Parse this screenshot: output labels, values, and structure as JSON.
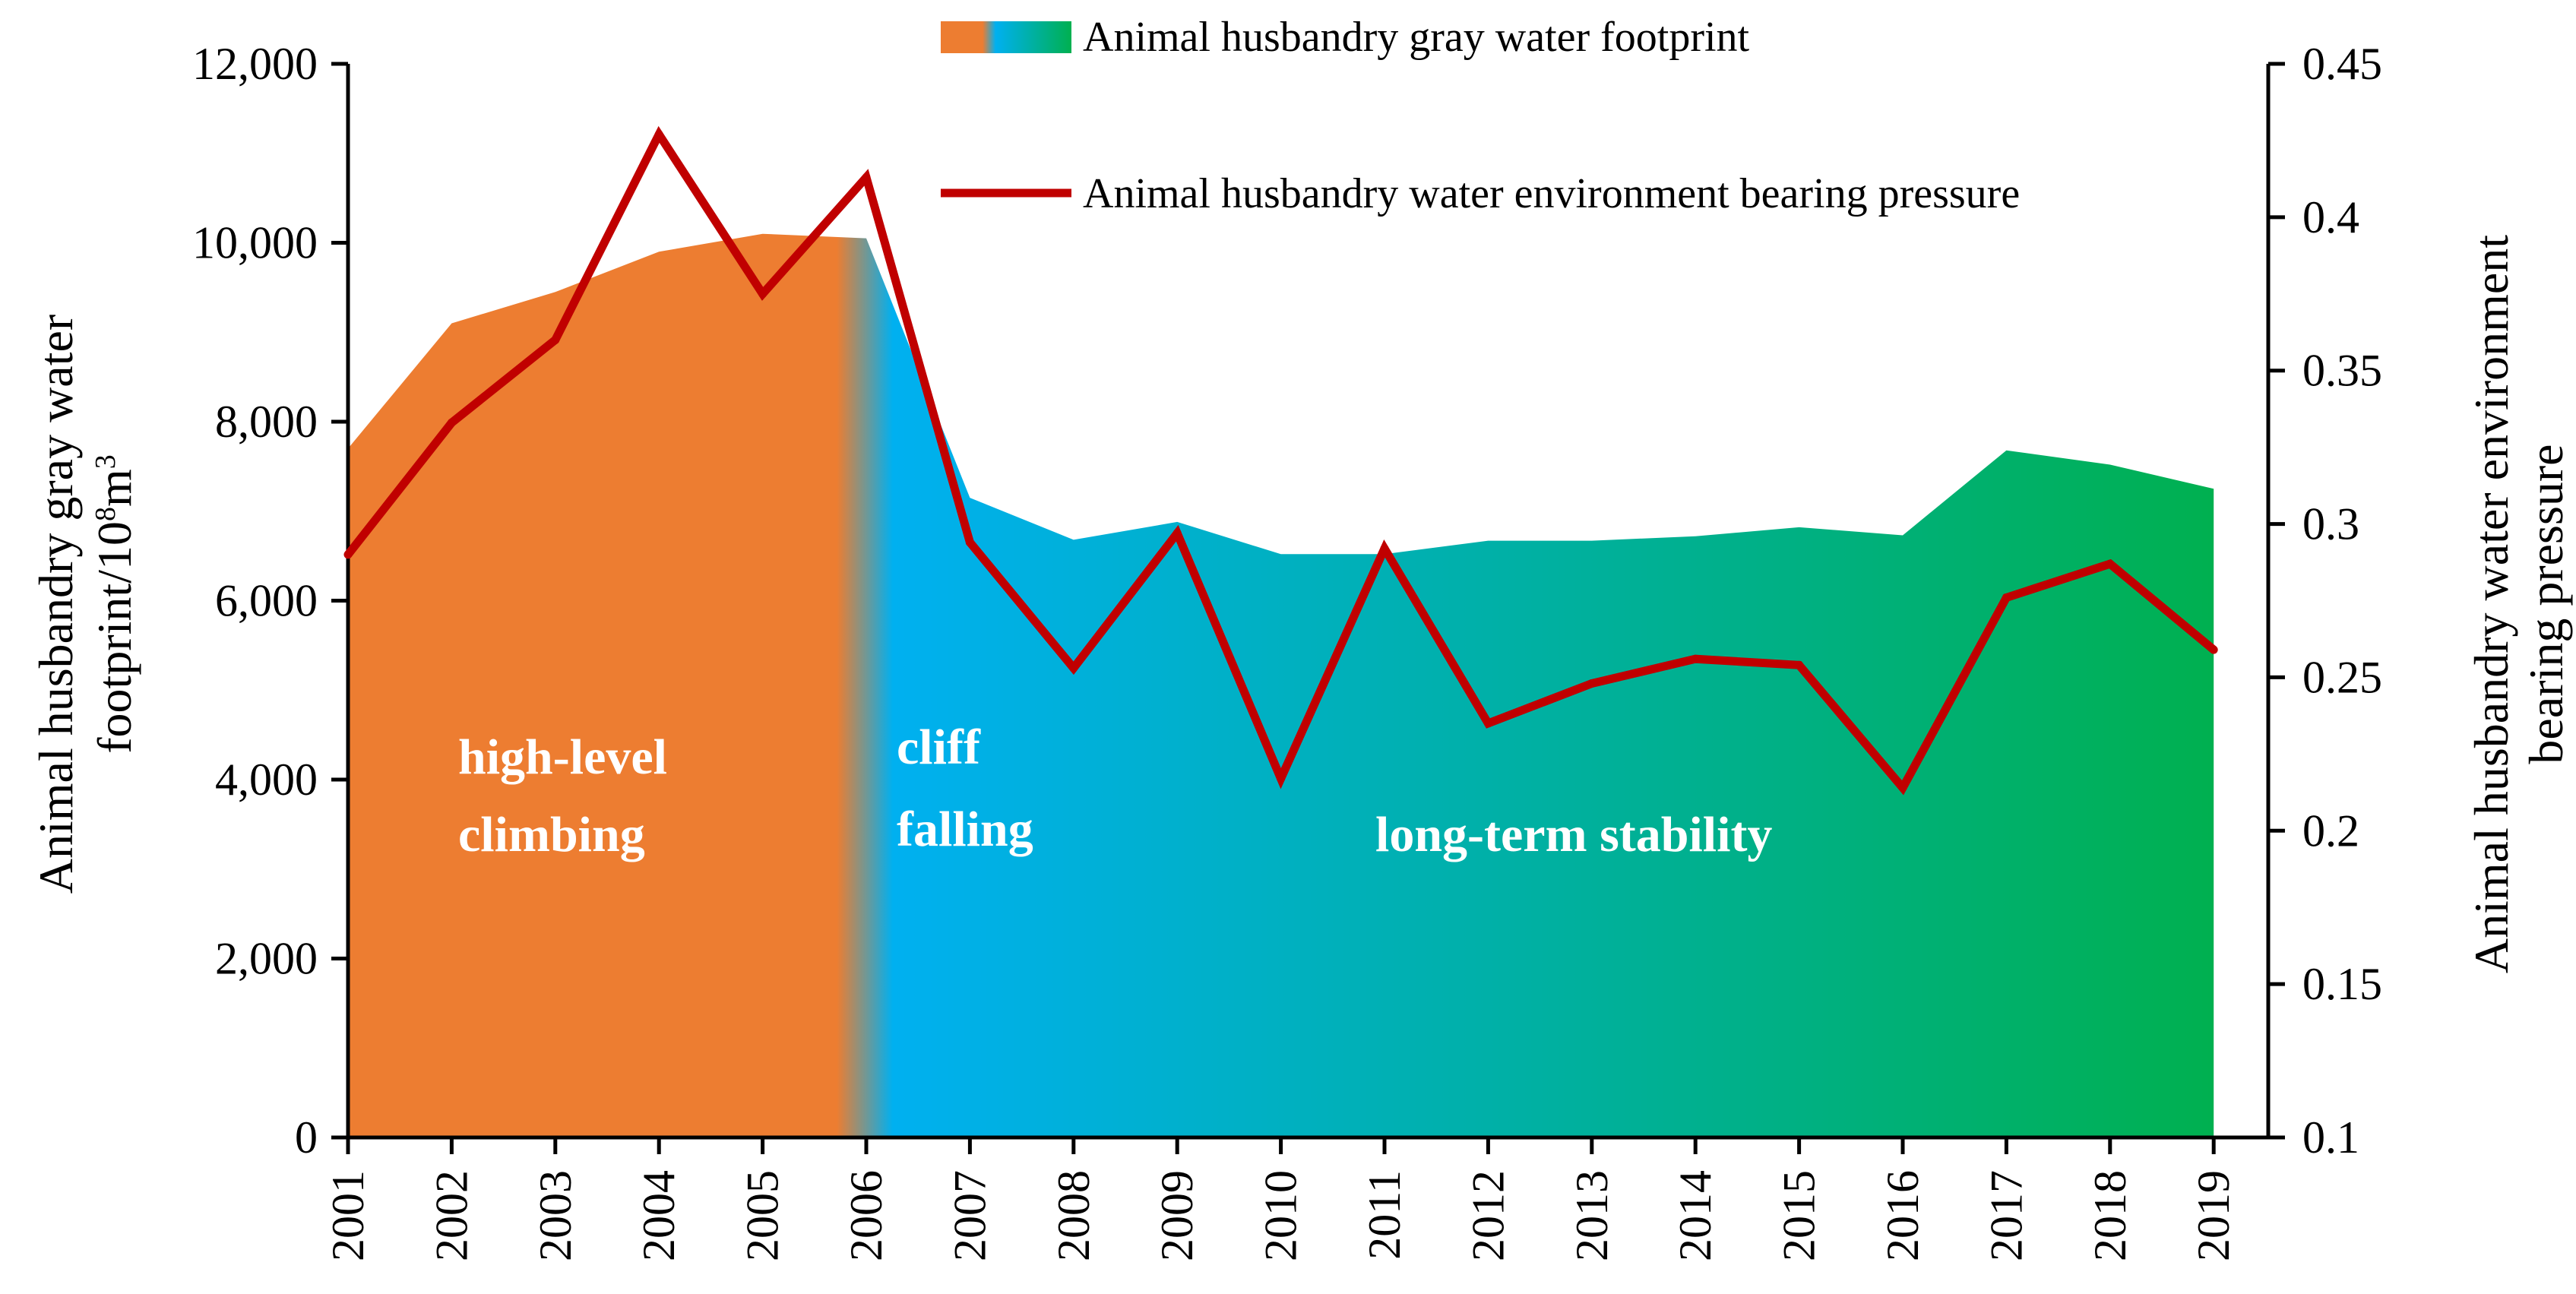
{
  "chart_data": {
    "type": "area",
    "categories": [
      "2001",
      "2002",
      "2003",
      "2004",
      "2005",
      "2006",
      "2007",
      "2008",
      "2009",
      "2010",
      "2011",
      "2012",
      "2013",
      "2014",
      "2015",
      "2016",
      "2017",
      "2018",
      "2019"
    ],
    "series": [
      {
        "name": "Animal husbandry gray water footprint",
        "type": "area",
        "axis": "left",
        "values": [
          7700,
          9100,
          9450,
          9900,
          10100,
          10050,
          7150,
          6680,
          6880,
          6520,
          6520,
          6670,
          6670,
          6720,
          6820,
          6730,
          7680,
          7520,
          7250
        ]
      },
      {
        "name": "Animal husbandry water environment bearing pressure",
        "type": "line",
        "axis": "right",
        "values": [
          0.29,
          0.333,
          0.36,
          0.427,
          0.375,
          0.413,
          0.294,
          0.253,
          0.297,
          0.217,
          0.292,
          0.235,
          0.248,
          0.256,
          0.254,
          0.214,
          0.276,
          0.287,
          0.259
        ]
      }
    ],
    "y_left": {
      "title_line1": "Animal husbandry gray water",
      "title_line2_prefix": "footprint/10",
      "title_line2_sup1": "8",
      "title_line2_mid": "m",
      "title_line2_sup2": "3",
      "range": [
        0,
        12000
      ],
      "ticks": [
        "0",
        "2,000",
        "4,000",
        "6,000",
        "8,000",
        "10,000",
        "12,000"
      ]
    },
    "y_right": {
      "title_line1": "Animal husbandry water environment",
      "title_line2": "bearing pressure",
      "range": [
        0.1,
        0.45
      ],
      "ticks": [
        "0.1",
        "0.15",
        "0.2",
        "0.25",
        "0.3",
        "0.35",
        "0.4",
        "0.45"
      ]
    },
    "phases": [
      {
        "line1": "high-level",
        "line2": "climbing"
      },
      {
        "line1": "cliff",
        "line2": "falling"
      },
      {
        "line1": "long-term stability",
        "line2": ""
      }
    ],
    "colors": {
      "phase1": "#ED7D31",
      "phase2_start": "#00B0F0",
      "phase2_end": "#00B050",
      "line": "#C00000"
    },
    "legend_position": "top-right",
    "grid": false
  }
}
